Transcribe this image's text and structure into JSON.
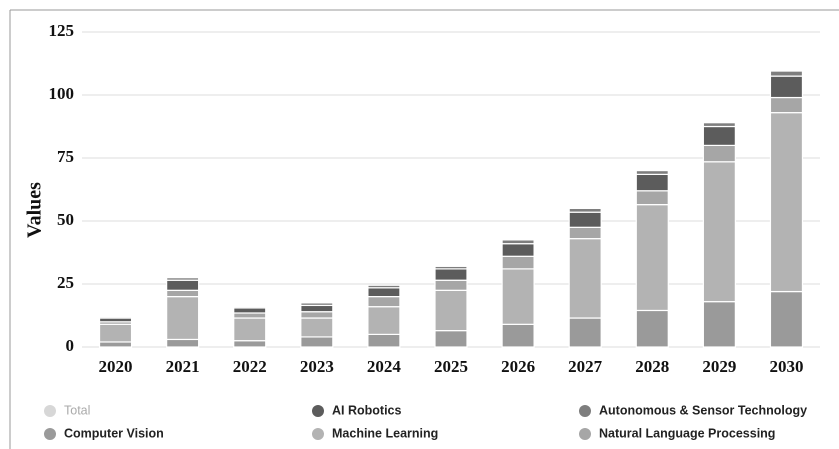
{
  "chart_data": {
    "type": "stacked_bar",
    "y_label": "Values",
    "categories": [
      "2020",
      "2021",
      "2022",
      "2023",
      "2024",
      "2025",
      "2026",
      "2027",
      "2028",
      "2029",
      "2030"
    ],
    "series": [
      {
        "name": "Total",
        "color": "#bdbdbd",
        "hidden": true
      },
      {
        "name": "AI Robotics",
        "color": "#5c5c5c",
        "values": [
          1.5,
          4,
          2,
          2.5,
          3.5,
          4.5,
          5,
          6,
          6.5,
          7.5,
          8.5
        ]
      },
      {
        "name": "Autonomous & Sensor Technology",
        "color": "#7e7e7e",
        "values": [
          0.5,
          1,
          0.5,
          1,
          1,
          1,
          1.5,
          1.5,
          1.5,
          1.5,
          2
        ]
      },
      {
        "name": "Computer Vision",
        "color": "#9a9a9a",
        "values": [
          2,
          3,
          2.5,
          4,
          5,
          6.5,
          9,
          11.5,
          14.5,
          18,
          22
        ]
      },
      {
        "name": "Machine Learning",
        "color": "#b3b3b3",
        "values": [
          7,
          17,
          9,
          7.5,
          11,
          16,
          22,
          31.5,
          42,
          55.5,
          71
        ]
      },
      {
        "name": "Natural Language Processing",
        "color": "#a6a6a6",
        "values": [
          1,
          2.5,
          2,
          2.5,
          4,
          4,
          5,
          4.5,
          5.5,
          6.5,
          6
        ]
      }
    ],
    "stack_order": [
      3,
      4,
      5,
      1,
      2
    ],
    "ylim": [
      0,
      125
    ],
    "yticks": [
      0,
      25,
      50,
      75,
      100,
      125
    ],
    "grid": true
  }
}
